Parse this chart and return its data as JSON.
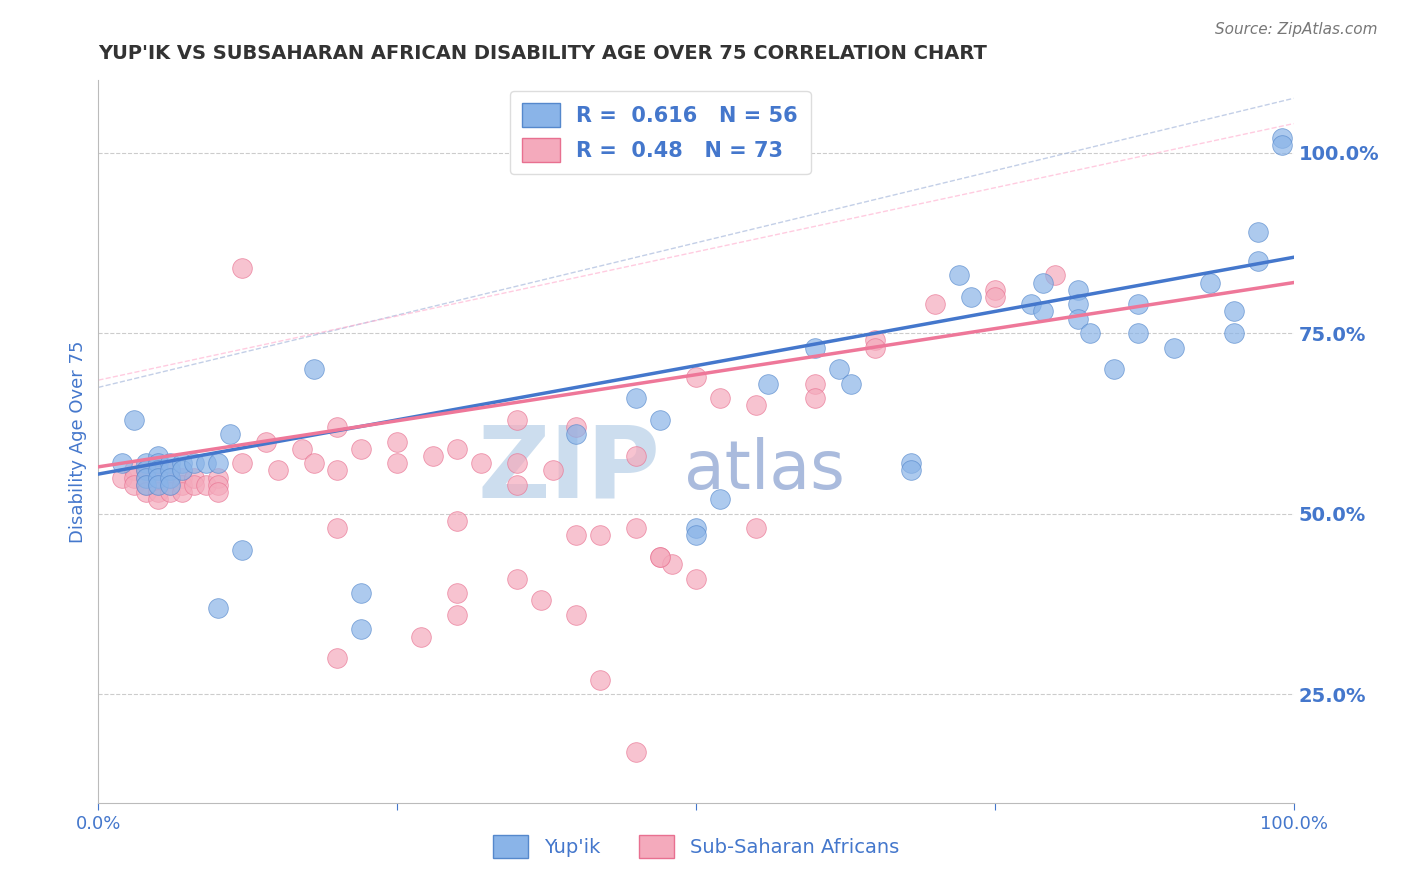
{
  "title": "YUP'IK VS SUBSAHARAN AFRICAN DISABILITY AGE OVER 75 CORRELATION CHART",
  "source": "Source: ZipAtlas.com",
  "xlabel": "",
  "ylabel": "Disability Age Over 75",
  "xlim": [
    0.0,
    1.0
  ],
  "ylim": [
    0.1,
    1.1
  ],
  "yticks": [
    0.25,
    0.5,
    0.75,
    1.0
  ],
  "ytick_labels": [
    "25.0%",
    "50.0%",
    "75.0%",
    "100.0%"
  ],
  "xticks": [
    0.0,
    0.25,
    0.5,
    0.75,
    1.0
  ],
  "xtick_labels": [
    "0.0%",
    "",
    "",
    "",
    "100.0%"
  ],
  "watermark_zip": "ZIP",
  "watermark_atlas": "atlas",
  "blue_R": 0.616,
  "blue_N": 56,
  "pink_R": 0.48,
  "pink_N": 73,
  "blue_label": "Yup'ik",
  "pink_label": "Sub-Saharan Africans",
  "blue_color": "#8AB4E8",
  "pink_color": "#F4AABC",
  "blue_edge_color": "#5588CC",
  "pink_edge_color": "#E87090",
  "blue_line_color": "#4477CC",
  "pink_line_color": "#EE7799",
  "blue_dash_color": "#AABBDD",
  "pink_dash_color": "#FFAACC",
  "background_color": "#FFFFFF",
  "grid_color": "#CCCCCC",
  "title_color": "#333333",
  "axis_color": "#4477CC",
  "watermark_zip_color": "#CCDDEE",
  "watermark_atlas_color": "#AABBDD",
  "blue_scatter": [
    [
      0.02,
      0.57
    ],
    [
      0.03,
      0.63
    ],
    [
      0.04,
      0.57
    ],
    [
      0.04,
      0.56
    ],
    [
      0.04,
      0.55
    ],
    [
      0.04,
      0.54
    ],
    [
      0.05,
      0.58
    ],
    [
      0.05,
      0.57
    ],
    [
      0.05,
      0.56
    ],
    [
      0.05,
      0.55
    ],
    [
      0.05,
      0.54
    ],
    [
      0.06,
      0.57
    ],
    [
      0.06,
      0.56
    ],
    [
      0.06,
      0.55
    ],
    [
      0.06,
      0.54
    ],
    [
      0.07,
      0.57
    ],
    [
      0.07,
      0.56
    ],
    [
      0.08,
      0.57
    ],
    [
      0.09,
      0.57
    ],
    [
      0.1,
      0.57
    ],
    [
      0.11,
      0.61
    ],
    [
      0.12,
      0.45
    ],
    [
      0.18,
      0.7
    ],
    [
      0.22,
      0.39
    ],
    [
      0.22,
      0.34
    ],
    [
      0.4,
      0.61
    ],
    [
      0.45,
      0.66
    ],
    [
      0.47,
      0.63
    ],
    [
      0.5,
      0.48
    ],
    [
      0.5,
      0.47
    ],
    [
      0.52,
      0.52
    ],
    [
      0.56,
      0.68
    ],
    [
      0.6,
      0.73
    ],
    [
      0.62,
      0.7
    ],
    [
      0.63,
      0.68
    ],
    [
      0.68,
      0.57
    ],
    [
      0.68,
      0.56
    ],
    [
      0.72,
      0.83
    ],
    [
      0.73,
      0.8
    ],
    [
      0.78,
      0.79
    ],
    [
      0.79,
      0.78
    ],
    [
      0.79,
      0.82
    ],
    [
      0.82,
      0.81
    ],
    [
      0.82,
      0.79
    ],
    [
      0.82,
      0.77
    ],
    [
      0.83,
      0.75
    ],
    [
      0.85,
      0.7
    ],
    [
      0.87,
      0.79
    ],
    [
      0.87,
      0.75
    ],
    [
      0.9,
      0.73
    ],
    [
      0.93,
      0.82
    ],
    [
      0.95,
      0.78
    ],
    [
      0.95,
      0.75
    ],
    [
      0.97,
      0.85
    ],
    [
      0.97,
      0.89
    ],
    [
      0.99,
      1.02
    ],
    [
      0.99,
      1.01
    ],
    [
      0.1,
      0.37
    ]
  ],
  "pink_scatter": [
    [
      0.02,
      0.55
    ],
    [
      0.03,
      0.56
    ],
    [
      0.03,
      0.55
    ],
    [
      0.03,
      0.54
    ],
    [
      0.04,
      0.56
    ],
    [
      0.04,
      0.55
    ],
    [
      0.04,
      0.54
    ],
    [
      0.04,
      0.53
    ],
    [
      0.05,
      0.56
    ],
    [
      0.05,
      0.55
    ],
    [
      0.05,
      0.54
    ],
    [
      0.05,
      0.53
    ],
    [
      0.05,
      0.52
    ],
    [
      0.06,
      0.56
    ],
    [
      0.06,
      0.55
    ],
    [
      0.06,
      0.54
    ],
    [
      0.06,
      0.53
    ],
    [
      0.07,
      0.55
    ],
    [
      0.07,
      0.54
    ],
    [
      0.07,
      0.53
    ],
    [
      0.08,
      0.55
    ],
    [
      0.08,
      0.54
    ],
    [
      0.09,
      0.54
    ],
    [
      0.1,
      0.55
    ],
    [
      0.1,
      0.54
    ],
    [
      0.1,
      0.53
    ],
    [
      0.12,
      0.84
    ],
    [
      0.12,
      0.57
    ],
    [
      0.14,
      0.6
    ],
    [
      0.15,
      0.56
    ],
    [
      0.17,
      0.59
    ],
    [
      0.18,
      0.57
    ],
    [
      0.2,
      0.62
    ],
    [
      0.2,
      0.56
    ],
    [
      0.2,
      0.48
    ],
    [
      0.22,
      0.59
    ],
    [
      0.25,
      0.6
    ],
    [
      0.25,
      0.57
    ],
    [
      0.28,
      0.58
    ],
    [
      0.3,
      0.59
    ],
    [
      0.3,
      0.49
    ],
    [
      0.32,
      0.57
    ],
    [
      0.35,
      0.63
    ],
    [
      0.35,
      0.57
    ],
    [
      0.35,
      0.54
    ],
    [
      0.38,
      0.56
    ],
    [
      0.4,
      0.62
    ],
    [
      0.4,
      0.47
    ],
    [
      0.42,
      0.47
    ],
    [
      0.45,
      0.58
    ],
    [
      0.45,
      0.48
    ],
    [
      0.47,
      0.44
    ],
    [
      0.48,
      0.43
    ],
    [
      0.5,
      0.69
    ],
    [
      0.52,
      0.66
    ],
    [
      0.55,
      0.65
    ],
    [
      0.55,
      0.48
    ],
    [
      0.6,
      0.68
    ],
    [
      0.6,
      0.66
    ],
    [
      0.65,
      0.74
    ],
    [
      0.65,
      0.73
    ],
    [
      0.7,
      0.79
    ],
    [
      0.75,
      0.81
    ],
    [
      0.75,
      0.8
    ],
    [
      0.8,
      0.83
    ],
    [
      0.2,
      0.3
    ],
    [
      0.27,
      0.33
    ],
    [
      0.3,
      0.39
    ],
    [
      0.3,
      0.36
    ],
    [
      0.35,
      0.41
    ],
    [
      0.37,
      0.38
    ],
    [
      0.4,
      0.36
    ],
    [
      0.42,
      0.27
    ],
    [
      0.45,
      0.17
    ],
    [
      0.47,
      0.44
    ],
    [
      0.5,
      0.41
    ]
  ],
  "figsize": [
    14.06,
    8.92
  ],
  "dpi": 100
}
